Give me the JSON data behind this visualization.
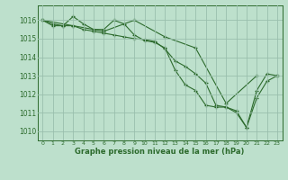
{
  "line1": {
    "x": [
      0,
      1,
      2,
      3,
      4,
      5,
      6,
      7,
      8,
      9,
      10,
      11,
      12,
      13,
      14,
      15,
      16,
      17,
      18,
      19,
      20,
      21,
      22,
      23
    ],
    "y": [
      1016.0,
      1015.7,
      1015.7,
      1016.2,
      1015.8,
      1015.5,
      1015.5,
      1016.0,
      1015.8,
      1015.2,
      1014.9,
      1014.8,
      1014.5,
      1013.3,
      1012.5,
      1012.2,
      1011.4,
      1011.3,
      1011.3,
      1011.1,
      1010.2,
      1011.8,
      1012.7,
      1013.0
    ]
  },
  "line2": {
    "x": [
      0,
      1,
      2,
      3,
      4,
      5,
      6,
      7,
      8,
      9,
      10,
      11,
      12,
      13,
      14,
      15,
      16,
      17,
      18,
      19,
      20,
      21,
      22,
      23
    ],
    "y": [
      1016.0,
      1015.8,
      1015.7,
      1015.7,
      1015.5,
      1015.4,
      1015.3,
      1015.2,
      1015.1,
      1015.0,
      1014.95,
      1014.85,
      1014.45,
      1013.8,
      1013.5,
      1013.1,
      1012.6,
      1011.4,
      1011.3,
      1011.0,
      1010.2,
      1012.2,
      1013.1,
      1013.0
    ]
  },
  "line3": {
    "x": [
      0,
      3,
      6,
      9,
      12,
      15,
      18,
      21
    ],
    "y": [
      1016.0,
      1015.7,
      1015.4,
      1016.0,
      1015.1,
      1014.5,
      1011.5,
      1013.0
    ]
  },
  "line_color": "#2d6b2d",
  "bg_color": "#bde0cc",
  "grid_color": "#9abfad",
  "xlabel": "Graphe pression niveau de la mer (hPa)",
  "ylim": [
    1009.5,
    1016.8
  ],
  "xlim": [
    -0.5,
    23.5
  ],
  "yticks": [
    1010,
    1011,
    1012,
    1013,
    1014,
    1015,
    1016
  ],
  "xticks": [
    0,
    1,
    2,
    3,
    4,
    5,
    6,
    7,
    8,
    9,
    10,
    11,
    12,
    13,
    14,
    15,
    16,
    17,
    18,
    19,
    20,
    21,
    22,
    23
  ],
  "figsize": [
    3.2,
    2.0
  ],
  "dpi": 100
}
